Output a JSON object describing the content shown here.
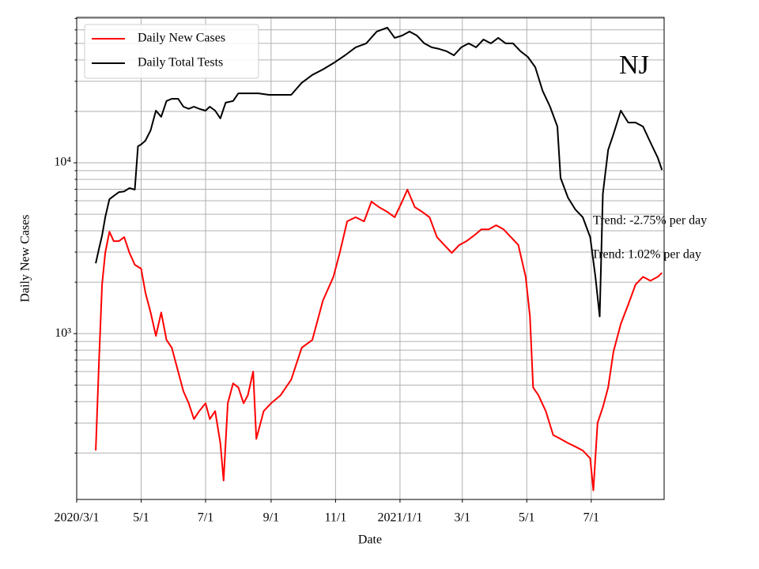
{
  "chart_data": {
    "type": "line",
    "xlabel": "Date",
    "ylabel": "Daily New Cases",
    "label": "NJ",
    "annotations": [
      {
        "text": "Trend: -2.75% per day"
      },
      {
        "text": "Trend: 1.02% per day"
      }
    ],
    "legend": "upper left",
    "grid": true,
    "log_scale": true,
    "xlim": [
      "2020-03-01",
      "2021-09-08"
    ],
    "xticks": [
      {
        "value": "2020-03-01",
        "label": "2020/3/1"
      },
      {
        "value": "2020-05-01",
        "label": "5/1"
      },
      {
        "value": "2020-07-01",
        "label": "7/1"
      },
      {
        "value": "2020-09-01",
        "label": "9/1"
      },
      {
        "value": "2020-11-01",
        "label": "11/1"
      },
      {
        "value": "2021-01-01",
        "label": "2021/1/1"
      },
      {
        "value": "2021-03-01",
        "label": "3/1"
      },
      {
        "value": "2021-05-01",
        "label": "5/1"
      },
      {
        "value": "2021-07-01",
        "label": "7/1"
      }
    ],
    "ylim": [
      107,
      71000
    ],
    "yticks": [
      {
        "value": 1000,
        "label": "10³"
      },
      {
        "value": 10000,
        "label": "10⁴"
      }
    ],
    "minor_yticks": [
      200,
      300,
      400,
      500,
      600,
      700,
      800,
      900,
      2000,
      3000,
      4000,
      5000,
      6000,
      7000,
      8000,
      9000,
      20000,
      30000,
      40000,
      50000,
      60000,
      70000
    ],
    "series": [
      {
        "name": "Daily New Cases",
        "color": "#ff0000",
        "x": [
          "2020-03-19",
          "2020-03-22",
          "2020-03-25",
          "2020-03-28",
          "2020-04-01",
          "2020-04-05",
          "2020-04-10",
          "2020-04-15",
          "2020-04-20",
          "2020-04-25",
          "2020-05-01",
          "2020-05-05",
          "2020-05-10",
          "2020-05-15",
          "2020-05-20",
          "2020-05-25",
          "2020-05-30",
          "2020-06-05",
          "2020-06-10",
          "2020-06-15",
          "2020-06-20",
          "2020-06-25",
          "2020-07-01",
          "2020-07-05",
          "2020-07-10",
          "2020-07-15",
          "2020-07-18",
          "2020-07-22",
          "2020-07-27",
          "2020-08-01",
          "2020-08-06",
          "2020-08-10",
          "2020-08-15",
          "2020-08-18",
          "2020-08-25",
          "2020-09-01",
          "2020-09-10",
          "2020-09-20",
          "2020-09-30",
          "2020-10-10",
          "2020-10-20",
          "2020-10-30",
          "2020-11-05",
          "2020-11-12",
          "2020-11-20",
          "2020-11-28",
          "2020-12-05",
          "2020-12-12",
          "2020-12-20",
          "2020-12-27",
          "2021-01-03",
          "2021-01-08",
          "2021-01-15",
          "2021-01-22",
          "2021-01-29",
          "2021-02-05",
          "2021-02-12",
          "2021-02-19",
          "2021-02-26",
          "2021-03-05",
          "2021-03-12",
          "2021-03-19",
          "2021-03-26",
          "2021-04-02",
          "2021-04-09",
          "2021-04-16",
          "2021-04-23",
          "2021-04-30",
          "2021-05-04",
          "2021-05-07",
          "2021-05-12",
          "2021-05-19",
          "2021-05-26",
          "2021-06-02",
          "2021-06-09",
          "2021-06-16",
          "2021-06-23",
          "2021-06-30",
          "2021-07-03",
          "2021-07-07",
          "2021-07-12",
          "2021-07-17",
          "2021-07-22",
          "2021-07-29",
          "2021-08-05",
          "2021-08-12",
          "2021-08-19",
          "2021-08-26",
          "2021-09-02",
          "2021-09-06"
        ],
        "values": [
          207,
          667,
          1940,
          2970,
          3950,
          3480,
          3480,
          3670,
          2970,
          2530,
          2400,
          1740,
          1330,
          970,
          1330,
          918,
          826,
          600,
          460,
          391,
          316,
          352,
          391,
          316,
          352,
          229,
          138,
          391,
          511,
          484,
          391,
          436,
          600,
          242,
          352,
          391,
          436,
          538,
          826,
          918,
          1560,
          2150,
          2970,
          4540,
          4800,
          4540,
          5930,
          5510,
          5160,
          4800,
          5930,
          6970,
          5510,
          5160,
          4800,
          3670,
          3300,
          2970,
          3300,
          3480,
          3750,
          4080,
          4080,
          4310,
          4080,
          3670,
          3300,
          2150,
          1260,
          484,
          436,
          352,
          255,
          242,
          229,
          218,
          207,
          186,
          121,
          300,
          371,
          484,
          783,
          1140,
          1480,
          1940,
          2150,
          2040,
          2150,
          2270
        ]
      },
      {
        "name": "Daily Total Tests",
        "color": "#000000",
        "x": [
          "2020-03-19",
          "2020-03-22",
          "2020-03-25",
          "2020-03-28",
          "2020-04-01",
          "2020-04-05",
          "2020-04-10",
          "2020-04-15",
          "2020-04-20",
          "2020-04-25",
          "2020-04-28",
          "2020-05-01",
          "2020-05-05",
          "2020-05-10",
          "2020-05-15",
          "2020-05-20",
          "2020-05-25",
          "2020-05-30",
          "2020-06-05",
          "2020-06-10",
          "2020-06-15",
          "2020-06-20",
          "2020-06-25",
          "2020-07-01",
          "2020-07-05",
          "2020-07-10",
          "2020-07-15",
          "2020-07-20",
          "2020-07-27",
          "2020-08-01",
          "2020-08-10",
          "2020-08-20",
          "2020-08-30",
          "2020-09-10",
          "2020-09-20",
          "2020-09-30",
          "2020-10-10",
          "2020-10-20",
          "2020-10-30",
          "2020-11-10",
          "2020-11-20",
          "2020-11-30",
          "2020-12-10",
          "2020-12-20",
          "2020-12-27",
          "2021-01-03",
          "2021-01-10",
          "2021-01-17",
          "2021-01-24",
          "2021-01-31",
          "2021-02-07",
          "2021-02-14",
          "2021-02-21",
          "2021-02-28",
          "2021-03-07",
          "2021-03-14",
          "2021-03-21",
          "2021-03-28",
          "2021-04-04",
          "2021-04-11",
          "2021-04-18",
          "2021-04-25",
          "2021-05-02",
          "2021-05-09",
          "2021-05-16",
          "2021-05-23",
          "2021-05-30",
          "2021-06-02",
          "2021-06-09",
          "2021-06-16",
          "2021-06-23",
          "2021-06-30",
          "2021-07-05",
          "2021-07-09",
          "2021-07-12",
          "2021-07-17",
          "2021-07-22",
          "2021-07-29",
          "2021-08-05",
          "2021-08-12",
          "2021-08-19",
          "2021-08-26",
          "2021-09-02",
          "2021-09-06"
        ],
        "values": [
          2580,
          3130,
          3750,
          4800,
          6120,
          6400,
          6740,
          6800,
          7110,
          6970,
          12500,
          12800,
          13480,
          15500,
          20200,
          18600,
          23000,
          23700,
          23700,
          21300,
          20700,
          21300,
          20700,
          20200,
          21300,
          20200,
          18200,
          22500,
          23000,
          25500,
          25500,
          25500,
          25000,
          25000,
          25000,
          29400,
          32700,
          35200,
          38300,
          42600,
          47400,
          50000,
          58700,
          61900,
          53900,
          55600,
          58700,
          55600,
          50000,
          47400,
          46400,
          45000,
          42600,
          47400,
          50000,
          47400,
          52700,
          50000,
          53900,
          50000,
          50000,
          45000,
          41700,
          36300,
          26400,
          21300,
          16300,
          8170,
          6250,
          5330,
          4800,
          3670,
          2150,
          1260,
          6590,
          11900,
          14700,
          20200,
          17200,
          17200,
          16300,
          13200,
          10700,
          9090
        ]
      }
    ]
  }
}
